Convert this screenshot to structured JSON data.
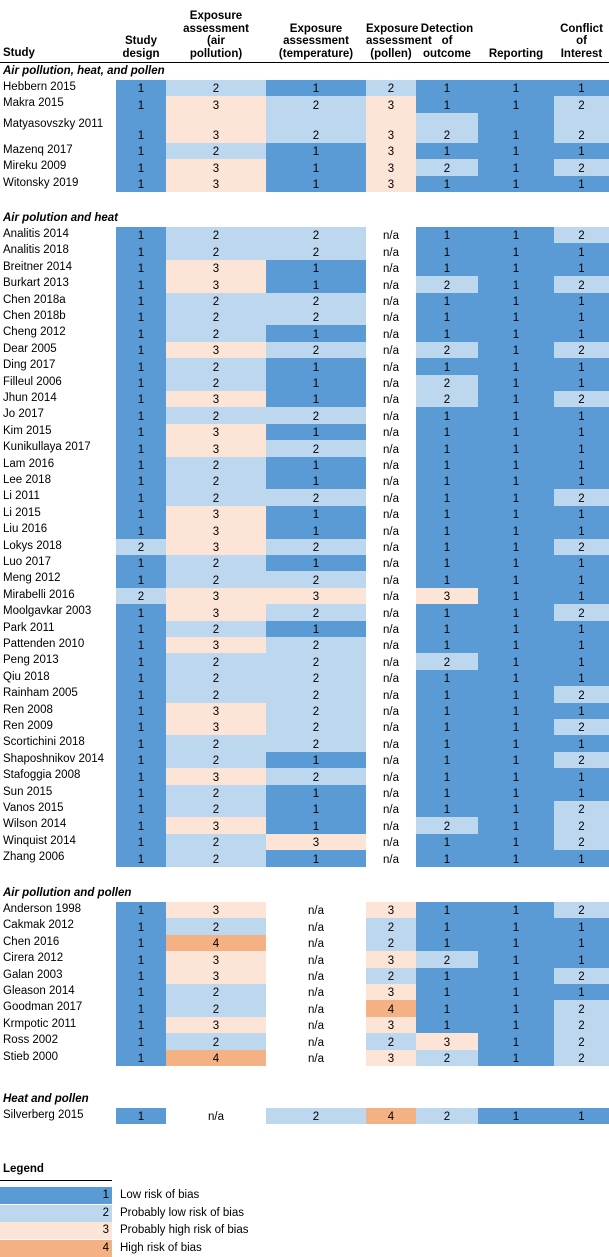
{
  "chart_data": {
    "type": "table",
    "columns": [
      "Study",
      "Study design",
      "Exposure assessment (air pollution)",
      "Exposure assessment (temperature)",
      "Exposure assessment (pollen)",
      "Detection of outcome",
      "Reporting",
      "Conflict of Interest"
    ],
    "header_lines": [
      [
        "Study"
      ],
      [
        "Study",
        "design"
      ],
      [
        "Exposure",
        "assessment",
        "(air",
        "pollution)"
      ],
      [
        "Exposure",
        "assessment",
        "(temperature)"
      ],
      [
        "Exposure",
        "assessment",
        "(pollen)"
      ],
      [
        "Detection",
        "of",
        "outcome"
      ],
      [
        "Reporting"
      ],
      [
        "Conflict",
        "of",
        "Interest"
      ]
    ],
    "sections": [
      {
        "title": "Air pollution, heat, and pollen",
        "rows": [
          {
            "study": "Hebbern 2015",
            "values": [
              "1",
              "2",
              "1",
              "2",
              "1",
              "1",
              "1"
            ]
          },
          {
            "study": "Makra 2015",
            "values": [
              "1",
              "3",
              "2",
              "3",
              "1",
              "1",
              "2"
            ]
          },
          {
            "study": "Matyasovszky 2011",
            "values": [
              "1",
              "3",
              "2",
              "3",
              "2",
              "1",
              "2"
            ]
          },
          {
            "study": "Mazenq 2017",
            "values": [
              "1",
              "2",
              "1",
              "3",
              "1",
              "1",
              "1"
            ]
          },
          {
            "study": "Mireku 2009",
            "values": [
              "1",
              "3",
              "1",
              "3",
              "2",
              "1",
              "2"
            ]
          },
          {
            "study": "Witonsky 2019",
            "values": [
              "1",
              "3",
              "1",
              "3",
              "1",
              "1",
              "1"
            ]
          }
        ]
      },
      {
        "title": "Air polution and heat",
        "rows": [
          {
            "study": "Analitis 2014",
            "values": [
              "1",
              "2",
              "2",
              "n/a",
              "1",
              "1",
              "2"
            ]
          },
          {
            "study": "Analitis 2018",
            "values": [
              "1",
              "2",
              "2",
              "n/a",
              "1",
              "1",
              "1"
            ]
          },
          {
            "study": "Breitner 2014",
            "values": [
              "1",
              "3",
              "1",
              "n/a",
              "1",
              "1",
              "1"
            ]
          },
          {
            "study": "Burkart 2013",
            "values": [
              "1",
              "3",
              "1",
              "n/a",
              "2",
              "1",
              "2"
            ]
          },
          {
            "study": "Chen 2018a",
            "values": [
              "1",
              "2",
              "2",
              "n/a",
              "1",
              "1",
              "1"
            ]
          },
          {
            "study": "Chen 2018b",
            "values": [
              "1",
              "2",
              "2",
              "n/a",
              "1",
              "1",
              "1"
            ]
          },
          {
            "study": "Cheng 2012",
            "values": [
              "1",
              "2",
              "1",
              "n/a",
              "1",
              "1",
              "1"
            ]
          },
          {
            "study": "Dear 2005",
            "values": [
              "1",
              "3",
              "2",
              "n/a",
              "2",
              "1",
              "2"
            ]
          },
          {
            "study": "Ding 2017",
            "values": [
              "1",
              "2",
              "1",
              "n/a",
              "1",
              "1",
              "1"
            ]
          },
          {
            "study": "Filleul 2006",
            "values": [
              "1",
              "2",
              "1",
              "n/a",
              "2",
              "1",
              "1"
            ]
          },
          {
            "study": "Jhun 2014",
            "values": [
              "1",
              "3",
              "1",
              "n/a",
              "2",
              "1",
              "2"
            ]
          },
          {
            "study": "Jo 2017",
            "values": [
              "1",
              "2",
              "2",
              "n/a",
              "1",
              "1",
              "1"
            ]
          },
          {
            "study": "Kim 2015",
            "values": [
              "1",
              "3",
              "1",
              "n/a",
              "1",
              "1",
              "1"
            ]
          },
          {
            "study": "Kunikullaya 2017",
            "values": [
              "1",
              "3",
              "2",
              "n/a",
              "1",
              "1",
              "1"
            ]
          },
          {
            "study": "Lam 2016",
            "values": [
              "1",
              "2",
              "1",
              "n/a",
              "1",
              "1",
              "1"
            ]
          },
          {
            "study": "Lee 2018",
            "values": [
              "1",
              "2",
              "1",
              "n/a",
              "1",
              "1",
              "1"
            ]
          },
          {
            "study": "Li 2011",
            "values": [
              "1",
              "2",
              "2",
              "n/a",
              "1",
              "1",
              "2"
            ]
          },
          {
            "study": "Li 2015",
            "values": [
              "1",
              "3",
              "1",
              "n/a",
              "1",
              "1",
              "1"
            ]
          },
          {
            "study": "Liu 2016",
            "values": [
              "1",
              "3",
              "1",
              "n/a",
              "1",
              "1",
              "1"
            ]
          },
          {
            "study": "Lokys 2018",
            "values": [
              "2",
              "3",
              "2",
              "n/a",
              "1",
              "1",
              "2"
            ]
          },
          {
            "study": "Luo 2017",
            "values": [
              "1",
              "2",
              "1",
              "n/a",
              "1",
              "1",
              "1"
            ]
          },
          {
            "study": "Meng 2012",
            "values": [
              "1",
              "2",
              "2",
              "n/a",
              "1",
              "1",
              "1"
            ]
          },
          {
            "study": "Mirabelli 2016",
            "values": [
              "2",
              "3",
              "3",
              "n/a",
              "3",
              "1",
              "1"
            ]
          },
          {
            "study": "Moolgavkar 2003",
            "values": [
              "1",
              "3",
              "2",
              "n/a",
              "1",
              "1",
              "2"
            ]
          },
          {
            "study": "Park 2011",
            "values": [
              "1",
              "2",
              "1",
              "n/a",
              "1",
              "1",
              "1"
            ]
          },
          {
            "study": "Pattenden 2010",
            "values": [
              "1",
              "3",
              "2",
              "n/a",
              "1",
              "1",
              "1"
            ]
          },
          {
            "study": "Peng 2013",
            "values": [
              "1",
              "2",
              "2",
              "n/a",
              "2",
              "1",
              "1"
            ]
          },
          {
            "study": "Qiu 2018",
            "values": [
              "1",
              "2",
              "2",
              "n/a",
              "1",
              "1",
              "1"
            ]
          },
          {
            "study": "Rainham 2005",
            "values": [
              "1",
              "2",
              "2",
              "n/a",
              "1",
              "1",
              "2"
            ]
          },
          {
            "study": "Ren 2008",
            "values": [
              "1",
              "3",
              "2",
              "n/a",
              "1",
              "1",
              "1"
            ]
          },
          {
            "study": "Ren 2009",
            "values": [
              "1",
              "3",
              "2",
              "n/a",
              "1",
              "1",
              "2"
            ]
          },
          {
            "study": "Scortichini 2018",
            "values": [
              "1",
              "2",
              "2",
              "n/a",
              "1",
              "1",
              "1"
            ]
          },
          {
            "study": "Shaposhnikov 2014",
            "values": [
              "1",
              "2",
              "1",
              "n/a",
              "1",
              "1",
              "2"
            ]
          },
          {
            "study": "Stafoggia 2008",
            "values": [
              "1",
              "3",
              "2",
              "n/a",
              "1",
              "1",
              "1"
            ]
          },
          {
            "study": "Sun 2015",
            "values": [
              "1",
              "2",
              "1",
              "n/a",
              "1",
              "1",
              "1"
            ]
          },
          {
            "study": "Vanos 2015",
            "values": [
              "1",
              "2",
              "1",
              "n/a",
              "1",
              "1",
              "2"
            ]
          },
          {
            "study": "Wilson 2014",
            "values": [
              "1",
              "3",
              "1",
              "n/a",
              "2",
              "1",
              "2"
            ]
          },
          {
            "study": "Winquist 2014",
            "values": [
              "1",
              "2",
              "3",
              "n/a",
              "1",
              "1",
              "2"
            ]
          },
          {
            "study": "Zhang 2006",
            "values": [
              "1",
              "2",
              "1",
              "n/a",
              "1",
              "1",
              "1"
            ]
          }
        ]
      },
      {
        "title": "Air pollution and pollen",
        "rows": [
          {
            "study": "Anderson 1998",
            "values": [
              "1",
              "3",
              "n/a",
              "3",
              "1",
              "1",
              "2"
            ]
          },
          {
            "study": "Cakmak 2012",
            "values": [
              "1",
              "2",
              "n/a",
              "2",
              "1",
              "1",
              "1"
            ]
          },
          {
            "study": "Chen 2016",
            "values": [
              "1",
              "4",
              "n/a",
              "2",
              "1",
              "1",
              "1"
            ]
          },
          {
            "study": "Cirera 2012",
            "values": [
              "1",
              "3",
              "n/a",
              "3",
              "2",
              "1",
              "1"
            ]
          },
          {
            "study": "Galan 2003",
            "values": [
              "1",
              "3",
              "n/a",
              "2",
              "1",
              "1",
              "2"
            ]
          },
          {
            "study": "Gleason 2014",
            "values": [
              "1",
              "2",
              "n/a",
              "3",
              "1",
              "1",
              "1"
            ]
          },
          {
            "study": "Goodman 2017",
            "values": [
              "1",
              "2",
              "n/a",
              "4",
              "1",
              "1",
              "2"
            ]
          },
          {
            "study": "Krmpotic 2011",
            "values": [
              "1",
              "3",
              "n/a",
              "3",
              "1",
              "1",
              "2"
            ]
          },
          {
            "study": "Ross 2002",
            "values": [
              "1",
              "2",
              "n/a",
              "2",
              "3",
              "1",
              "2"
            ]
          },
          {
            "study": "Stieb 2000",
            "values": [
              "1",
              "4",
              "n/a",
              "3",
              "2",
              "1",
              "2"
            ]
          }
        ]
      },
      {
        "title": "Heat and pollen",
        "rows": [
          {
            "study": "Silverberg 2015",
            "values": [
              "1",
              "n/a",
              "2",
              "4",
              "2",
              "1",
              "1"
            ]
          }
        ]
      }
    ],
    "legend_title": "Legend",
    "legend": [
      {
        "value": "1",
        "label": "Low risk of bias",
        "color": "#5b9bd5"
      },
      {
        "value": "2",
        "label": "Probably low risk of bias",
        "color": "#bdd7ee"
      },
      {
        "value": "3",
        "label": "Probably high risk of bias",
        "color": "#fce4d6"
      },
      {
        "value": "4",
        "label": "High risk of bias",
        "color": "#f4b183"
      }
    ],
    "na_color": "#ffffff"
  }
}
